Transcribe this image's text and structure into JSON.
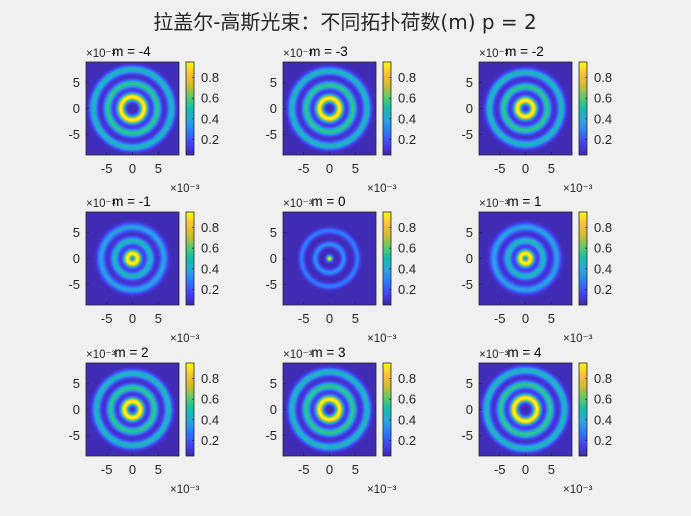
{
  "figure": {
    "suptitle": "拉盖尔-高斯光束：不同拓扑荷数(m)    p = 2"
  },
  "chart_data": {
    "type": "heatmap",
    "title": "拉盖尔-高斯光束：不同拓扑荷数(m)    p = 2",
    "radial_index_p": 2,
    "colormap": "parula",
    "colormap_stops": [
      "#3e26a8",
      "#4743f3",
      "#2b7afb",
      "#2ca4de",
      "#13bdab",
      "#5dca6b",
      "#d1bb2f",
      "#fdc038",
      "#f9fb0e"
    ],
    "axis_multiplier": "×10⁻³",
    "xlim": [
      -9,
      9
    ],
    "ylim": [
      -9,
      9
    ],
    "xticks": [
      -5,
      0,
      5
    ],
    "yticks": [
      5,
      0,
      -5
    ],
    "colorbar_range": [
      0.05,
      0.95
    ],
    "colorbar_ticks": [
      0.2,
      0.4,
      0.6,
      0.8
    ],
    "panels": [
      {
        "m": -4,
        "title": "m = -4",
        "ring_radii": [
          2.3,
          4.9,
          7.7
        ],
        "ring_peaks": [
          1.0,
          0.55,
          0.45
        ]
      },
      {
        "m": -3,
        "title": "m = -3",
        "ring_radii": [
          2.0,
          4.6,
          7.4
        ],
        "ring_peaks": [
          1.0,
          0.55,
          0.45
        ]
      },
      {
        "m": -2,
        "title": "m = -2",
        "ring_radii": [
          1.6,
          4.3,
          7.1
        ],
        "ring_peaks": [
          1.0,
          0.55,
          0.45
        ]
      },
      {
        "m": -1,
        "title": "m = -1",
        "ring_radii": [
          1.0,
          3.5,
          6.2
        ],
        "ring_peaks": [
          1.0,
          0.45,
          0.35
        ]
      },
      {
        "m": 0,
        "title": "m = 0",
        "ring_radii": [
          0.0,
          2.8,
          5.5
        ],
        "ring_peaks": [
          1.0,
          0.3,
          0.25
        ]
      },
      {
        "m": 1,
        "title": "m = 1",
        "ring_radii": [
          1.0,
          3.5,
          6.2
        ],
        "ring_peaks": [
          1.0,
          0.45,
          0.35
        ]
      },
      {
        "m": 2,
        "title": "m = 2",
        "ring_radii": [
          1.6,
          4.3,
          7.1
        ],
        "ring_peaks": [
          1.0,
          0.55,
          0.45
        ]
      },
      {
        "m": 3,
        "title": "m = 3",
        "ring_radii": [
          2.0,
          4.6,
          7.4
        ],
        "ring_peaks": [
          1.0,
          0.55,
          0.45
        ]
      },
      {
        "m": 4,
        "title": "m = 4",
        "ring_radii": [
          2.3,
          4.9,
          7.7
        ],
        "ring_peaks": [
          1.0,
          0.55,
          0.45
        ]
      }
    ]
  }
}
